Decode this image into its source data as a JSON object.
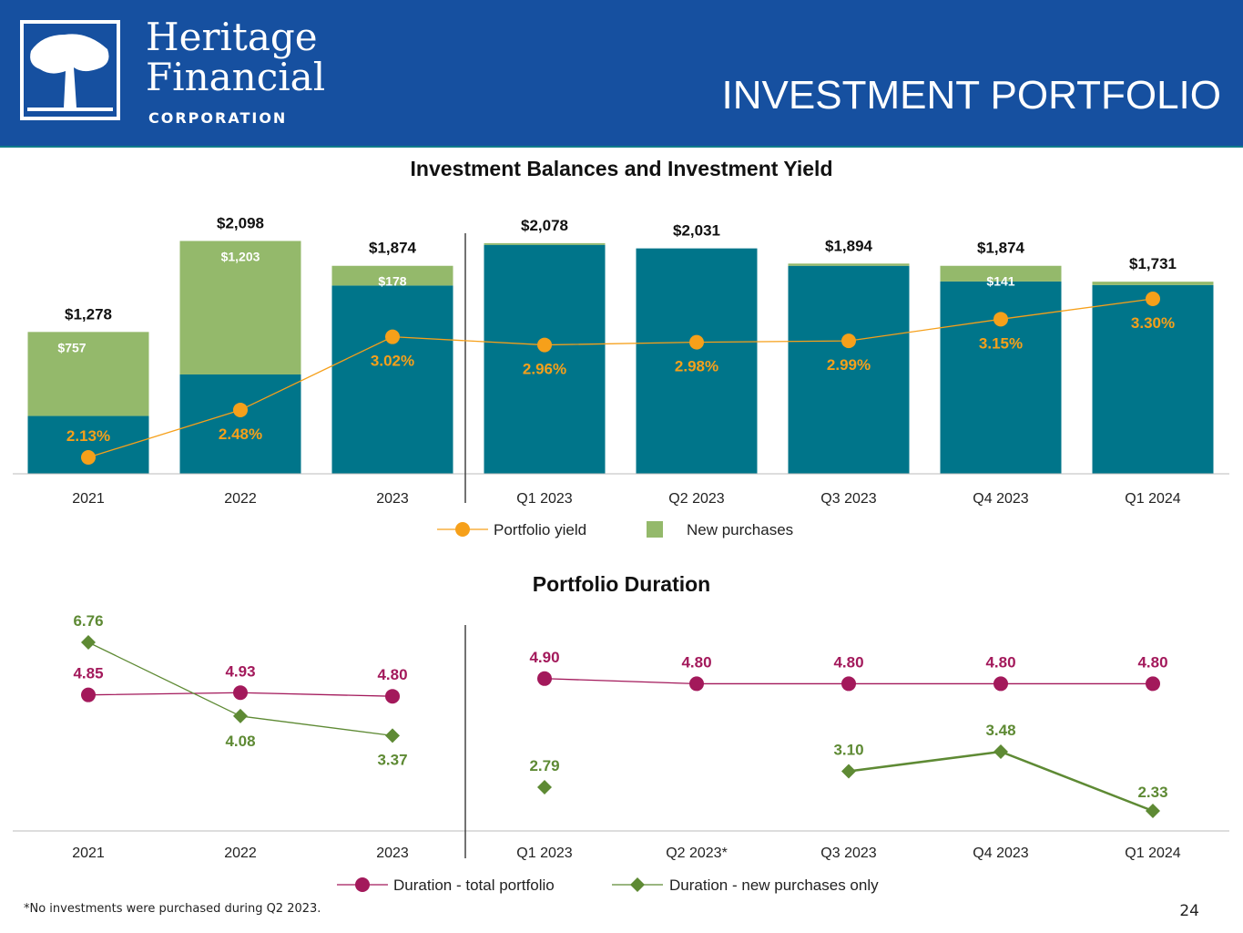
{
  "header": {
    "brand_line1": "Heritage",
    "brand_line2": "Financial",
    "brand_line3": "CORPORATION",
    "title": "INVESTMENT PORTFOLIO",
    "background_color": "#1650a0"
  },
  "chart_data": [
    {
      "type": "bar",
      "title": "Investment Balances and Investment Yield",
      "categories": [
        "2021",
        "2022",
        "2023",
        "Q1 2023",
        "Q2 2023",
        "Q3 2023",
        "Q4 2023",
        "Q1 2024"
      ],
      "series": [
        {
          "name": "Portfolio balance",
          "values": [
            1278,
            2098,
            1874,
            2078,
            2031,
            1894,
            1874,
            1731
          ],
          "labels": [
            "$1,278",
            "$2,098",
            "$1,874",
            "$2,078",
            "$2,031",
            "$1,894",
            "$1,874",
            "$1,731"
          ],
          "color": "#00758a"
        },
        {
          "name": "New purchases",
          "values": [
            757,
            1203,
            178,
            15,
            0,
            20,
            141,
            30
          ],
          "labels": [
            "$757",
            "$1,203",
            "$178",
            "",
            "",
            "",
            "$141",
            ""
          ],
          "color": "#94b96b"
        },
        {
          "name": "Portfolio yield",
          "type": "line",
          "values": [
            2.13,
            2.48,
            3.02,
            2.96,
            2.98,
            2.99,
            3.15,
            3.3
          ],
          "labels": [
            "2.13%",
            "2.48%",
            "3.02%",
            "2.96%",
            "2.98%",
            "2.99%",
            "3.15%",
            "3.30%"
          ],
          "color": "#f6a01a"
        }
      ],
      "legend": [
        "Portfolio yield",
        "New purchases"
      ],
      "legend_position": "bottom"
    },
    {
      "type": "line",
      "title": "Portfolio Duration",
      "categories": [
        "2021",
        "2022",
        "2023",
        "Q1 2023",
        "Q2 2023*",
        "Q3 2023",
        "Q4 2023",
        "Q1 2024"
      ],
      "series": [
        {
          "name": "Duration - total portfolio",
          "values": [
            4.85,
            4.93,
            4.8,
            4.9,
            4.8,
            4.8,
            4.8,
            4.8
          ],
          "labels": [
            "4.85",
            "4.93",
            "4.80",
            "4.90",
            "4.80",
            "4.80",
            "4.80",
            "4.80"
          ],
          "color": "#a3195b"
        },
        {
          "name": "Duration - new purchases only",
          "values": [
            6.76,
            4.08,
            3.37,
            2.79,
            null,
            3.1,
            3.48,
            2.33
          ],
          "labels": [
            "6.76",
            "4.08",
            "3.37",
            "2.79",
            "",
            "3.10",
            "3.48",
            "2.33"
          ],
          "color": "#5e8a34"
        }
      ],
      "legend_position": "bottom"
    }
  ],
  "footnote": "*No investments were purchased during Q2 2023.",
  "page_number": "24"
}
